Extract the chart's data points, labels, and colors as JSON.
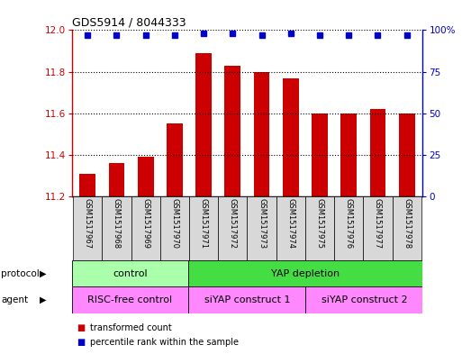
{
  "title": "GDS5914 / 8044333",
  "samples": [
    "GSM1517967",
    "GSM1517968",
    "GSM1517969",
    "GSM1517970",
    "GSM1517971",
    "GSM1517972",
    "GSM1517973",
    "GSM1517974",
    "GSM1517975",
    "GSM1517976",
    "GSM1517977",
    "GSM1517978"
  ],
  "transformed_counts": [
    11.31,
    11.36,
    11.39,
    11.55,
    11.89,
    11.83,
    11.8,
    11.77,
    11.6,
    11.6,
    11.62,
    11.6
  ],
  "percentile_ranks": [
    97,
    97,
    97,
    97,
    98,
    98,
    97,
    98,
    97,
    97,
    97,
    97
  ],
  "ylim_left": [
    11.2,
    12.0
  ],
  "ylim_right": [
    0,
    100
  ],
  "yticks_left": [
    11.2,
    11.4,
    11.6,
    11.8,
    12.0
  ],
  "yticks_right": [
    0,
    25,
    50,
    75,
    100
  ],
  "bar_color": "#cc0000",
  "dot_color": "#0000cc",
  "protocol_groups": [
    {
      "label": "control",
      "start": 0,
      "end": 3,
      "color": "#aaffaa"
    },
    {
      "label": "YAP depletion",
      "start": 4,
      "end": 11,
      "color": "#44dd44"
    }
  ],
  "agent_groups": [
    {
      "label": "RISC-free control",
      "start": 0,
      "end": 3,
      "color": "#ff88ff"
    },
    {
      "label": "siYAP construct 1",
      "start": 4,
      "end": 7,
      "color": "#ff88ff"
    },
    {
      "label": "siYAP construct 2",
      "start": 8,
      "end": 11,
      "color": "#ff88ff"
    }
  ],
  "label_protocol": "protocol",
  "label_agent": "agent",
  "legend_tc": "transformed count",
  "legend_pr": "percentile rank within the sample"
}
